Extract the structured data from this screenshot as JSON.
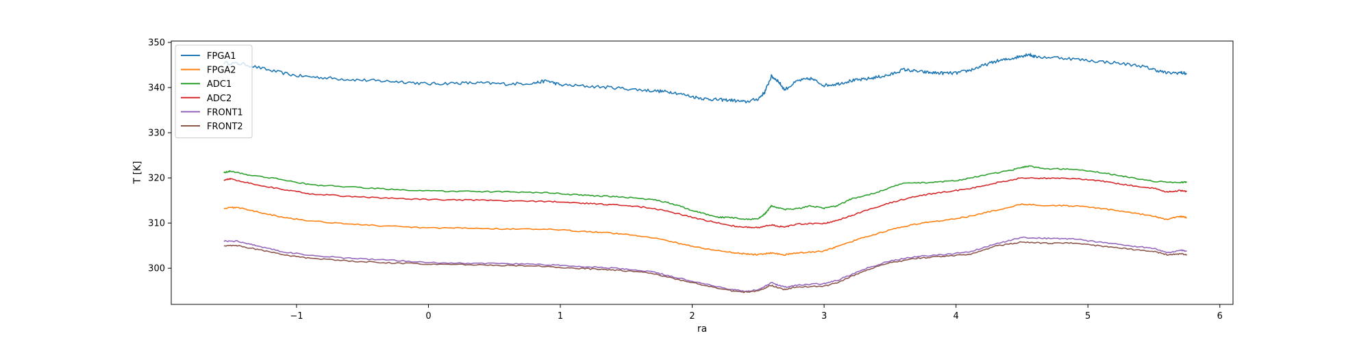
{
  "chart_data": {
    "type": "line",
    "xlabel": "ra",
    "ylabel": "T [K]",
    "xlim": [
      -1.95,
      6.1
    ],
    "ylim": [
      292,
      350.3
    ],
    "xticks": [
      -1,
      0,
      1,
      2,
      3,
      4,
      5,
      6
    ],
    "xtick_labels": [
      "−1",
      "0",
      "1",
      "2",
      "3",
      "4",
      "5",
      "6"
    ],
    "yticks": [
      300,
      310,
      320,
      330,
      340,
      350
    ],
    "ytick_labels": [
      "300",
      "310",
      "320",
      "330",
      "340",
      "350"
    ],
    "legend_position": "top-left",
    "grid": false,
    "series": [
      {
        "name": "FPGA1",
        "color": "#1f77b4",
        "points": [
          [
            -1.55,
            345.5
          ],
          [
            -1.4,
            345.2
          ],
          [
            -1.2,
            343.8
          ],
          [
            -1.0,
            342.6
          ],
          [
            -0.8,
            342.2
          ],
          [
            -0.6,
            341.8
          ],
          [
            -0.4,
            341.5
          ],
          [
            -0.2,
            341.3
          ],
          [
            0.0,
            340.8
          ],
          [
            0.2,
            341.0
          ],
          [
            0.4,
            341.0
          ],
          [
            0.6,
            340.8
          ],
          [
            0.8,
            341.0
          ],
          [
            0.9,
            341.5
          ],
          [
            1.0,
            340.6
          ],
          [
            1.2,
            340.3
          ],
          [
            1.4,
            340.0
          ],
          [
            1.6,
            339.5
          ],
          [
            1.75,
            339.2
          ],
          [
            1.85,
            339.0
          ],
          [
            2.0,
            338.0
          ],
          [
            2.1,
            337.5
          ],
          [
            2.2,
            337.3
          ],
          [
            2.3,
            337.2
          ],
          [
            2.4,
            336.8
          ],
          [
            2.5,
            337.5
          ],
          [
            2.55,
            339.0
          ],
          [
            2.6,
            342.5
          ],
          [
            2.65,
            341.5
          ],
          [
            2.7,
            339.5
          ],
          [
            2.8,
            341.5
          ],
          [
            2.9,
            342.0
          ],
          [
            3.0,
            340.5
          ],
          [
            3.1,
            340.8
          ],
          [
            3.2,
            341.5
          ],
          [
            3.3,
            341.8
          ],
          [
            3.4,
            342.3
          ],
          [
            3.5,
            342.8
          ],
          [
            3.6,
            344.0
          ],
          [
            3.7,
            343.6
          ],
          [
            3.8,
            343.3
          ],
          [
            3.9,
            343.2
          ],
          [
            4.0,
            343.2
          ],
          [
            4.1,
            343.8
          ],
          [
            4.2,
            344.8
          ],
          [
            4.3,
            345.8
          ],
          [
            4.4,
            346.3
          ],
          [
            4.5,
            347.0
          ],
          [
            4.55,
            347.4
          ],
          [
            4.6,
            346.8
          ],
          [
            4.8,
            346.6
          ],
          [
            5.0,
            346.0
          ],
          [
            5.2,
            345.5
          ],
          [
            5.4,
            344.8
          ],
          [
            5.5,
            344.0
          ],
          [
            5.6,
            343.2
          ],
          [
            5.7,
            343.3
          ],
          [
            5.75,
            343.1
          ]
        ]
      },
      {
        "name": "FPGA2",
        "color": "#ff7f0e",
        "points": [
          [
            -1.55,
            313.3
          ],
          [
            -1.45,
            313.5
          ],
          [
            -1.3,
            312.5
          ],
          [
            -1.1,
            311.3
          ],
          [
            -0.9,
            310.5
          ],
          [
            -0.6,
            309.8
          ],
          [
            -0.3,
            309.3
          ],
          [
            0.0,
            308.9
          ],
          [
            0.3,
            308.9
          ],
          [
            0.6,
            308.7
          ],
          [
            0.9,
            308.6
          ],
          [
            1.1,
            308.3
          ],
          [
            1.3,
            308.0
          ],
          [
            1.5,
            307.5
          ],
          [
            1.7,
            306.8
          ],
          [
            1.9,
            305.5
          ],
          [
            2.1,
            304.3
          ],
          [
            2.3,
            303.5
          ],
          [
            2.4,
            303.2
          ],
          [
            2.5,
            303.0
          ],
          [
            2.6,
            303.4
          ],
          [
            2.7,
            303.0
          ],
          [
            2.8,
            303.4
          ],
          [
            3.0,
            303.8
          ],
          [
            3.1,
            304.8
          ],
          [
            3.3,
            306.8
          ],
          [
            3.5,
            308.5
          ],
          [
            3.7,
            309.8
          ],
          [
            3.9,
            310.6
          ],
          [
            4.1,
            311.5
          ],
          [
            4.3,
            312.8
          ],
          [
            4.5,
            314.2
          ],
          [
            4.7,
            313.9
          ],
          [
            4.9,
            313.8
          ],
          [
            5.1,
            313.2
          ],
          [
            5.3,
            312.5
          ],
          [
            5.5,
            311.5
          ],
          [
            5.6,
            310.8
          ],
          [
            5.7,
            311.5
          ],
          [
            5.75,
            311.2
          ]
        ]
      },
      {
        "name": "ADC1",
        "color": "#2ca02c",
        "points": [
          [
            -1.55,
            321.2
          ],
          [
            -1.5,
            321.5
          ],
          [
            -1.35,
            320.6
          ],
          [
            -1.1,
            319.6
          ],
          [
            -0.9,
            318.5
          ],
          [
            -0.6,
            318.0
          ],
          [
            -0.3,
            317.5
          ],
          [
            0.0,
            317.1
          ],
          [
            0.3,
            317.0
          ],
          [
            0.6,
            316.9
          ],
          [
            0.9,
            316.7
          ],
          [
            1.1,
            316.3
          ],
          [
            1.3,
            316.0
          ],
          [
            1.5,
            315.7
          ],
          [
            1.7,
            315.2
          ],
          [
            1.85,
            314.3
          ],
          [
            2.0,
            312.8
          ],
          [
            2.1,
            312.0
          ],
          [
            2.2,
            311.3
          ],
          [
            2.3,
            311.2
          ],
          [
            2.4,
            310.8
          ],
          [
            2.5,
            311.0
          ],
          [
            2.55,
            312.0
          ],
          [
            2.6,
            313.8
          ],
          [
            2.7,
            313.0
          ],
          [
            2.8,
            313.2
          ],
          [
            2.9,
            313.8
          ],
          [
            3.0,
            313.3
          ],
          [
            3.1,
            313.8
          ],
          [
            3.2,
            315.3
          ],
          [
            3.4,
            316.8
          ],
          [
            3.6,
            318.8
          ],
          [
            3.8,
            319.0
          ],
          [
            4.0,
            319.4
          ],
          [
            4.2,
            320.5
          ],
          [
            4.4,
            321.6
          ],
          [
            4.5,
            322.3
          ],
          [
            4.55,
            322.6
          ],
          [
            4.7,
            322.0
          ],
          [
            4.9,
            322.0
          ],
          [
            5.1,
            321.2
          ],
          [
            5.3,
            320.2
          ],
          [
            5.5,
            319.2
          ],
          [
            5.7,
            319.0
          ],
          [
            5.75,
            319.1
          ]
        ]
      },
      {
        "name": "ADC2",
        "color": "#d62728",
        "points": [
          [
            -1.55,
            319.5
          ],
          [
            -1.5,
            319.8
          ],
          [
            -1.35,
            318.8
          ],
          [
            -1.1,
            317.4
          ],
          [
            -0.9,
            316.5
          ],
          [
            -0.6,
            315.9
          ],
          [
            -0.3,
            315.5
          ],
          [
            0.0,
            315.2
          ],
          [
            0.3,
            315.1
          ],
          [
            0.6,
            314.9
          ],
          [
            0.9,
            314.8
          ],
          [
            1.1,
            314.5
          ],
          [
            1.3,
            314.2
          ],
          [
            1.5,
            313.9
          ],
          [
            1.7,
            313.3
          ],
          [
            1.9,
            312.0
          ],
          [
            2.1,
            310.6
          ],
          [
            2.3,
            309.4
          ],
          [
            2.4,
            309.1
          ],
          [
            2.5,
            309.0
          ],
          [
            2.6,
            309.6
          ],
          [
            2.7,
            309.1
          ],
          [
            2.8,
            309.8
          ],
          [
            3.0,
            309.9
          ],
          [
            3.1,
            310.6
          ],
          [
            3.3,
            312.6
          ],
          [
            3.5,
            314.5
          ],
          [
            3.7,
            316.0
          ],
          [
            3.9,
            316.8
          ],
          [
            4.1,
            317.6
          ],
          [
            4.3,
            318.9
          ],
          [
            4.5,
            320.0
          ],
          [
            4.7,
            319.9
          ],
          [
            4.9,
            319.9
          ],
          [
            5.1,
            319.3
          ],
          [
            5.3,
            318.4
          ],
          [
            5.5,
            317.7
          ],
          [
            5.6,
            316.9
          ],
          [
            5.7,
            317.2
          ],
          [
            5.75,
            317.0
          ]
        ]
      },
      {
        "name": "FRONT1",
        "color": "#9467bd",
        "points": [
          [
            -1.55,
            306.0
          ],
          [
            -1.45,
            306.0
          ],
          [
            -1.3,
            305.0
          ],
          [
            -1.1,
            303.6
          ],
          [
            -0.9,
            302.9
          ],
          [
            -0.6,
            302.2
          ],
          [
            -0.3,
            301.8
          ],
          [
            0.0,
            301.3
          ],
          [
            0.3,
            301.1
          ],
          [
            0.6,
            301.0
          ],
          [
            0.9,
            300.8
          ],
          [
            1.1,
            300.4
          ],
          [
            1.3,
            300.2
          ],
          [
            1.5,
            299.8
          ],
          [
            1.7,
            299.2
          ],
          [
            1.9,
            297.8
          ],
          [
            2.1,
            296.5
          ],
          [
            2.3,
            295.3
          ],
          [
            2.4,
            294.9
          ],
          [
            2.5,
            295.2
          ],
          [
            2.6,
            296.8
          ],
          [
            2.7,
            295.8
          ],
          [
            2.8,
            296.3
          ],
          [
            3.0,
            296.6
          ],
          [
            3.1,
            297.3
          ],
          [
            3.3,
            299.8
          ],
          [
            3.5,
            301.6
          ],
          [
            3.7,
            302.6
          ],
          [
            3.9,
            303.0
          ],
          [
            4.1,
            303.6
          ],
          [
            4.3,
            305.4
          ],
          [
            4.5,
            306.8
          ],
          [
            4.7,
            306.6
          ],
          [
            4.9,
            306.5
          ],
          [
            5.1,
            305.7
          ],
          [
            5.3,
            305.0
          ],
          [
            5.5,
            304.4
          ],
          [
            5.6,
            303.4
          ],
          [
            5.7,
            304.0
          ],
          [
            5.75,
            303.8
          ]
        ]
      },
      {
        "name": "FRONT2",
        "color": "#8c564b",
        "points": [
          [
            -1.55,
            305.0
          ],
          [
            -1.45,
            305.0
          ],
          [
            -1.3,
            304.2
          ],
          [
            -1.1,
            303.0
          ],
          [
            -0.9,
            302.2
          ],
          [
            -0.6,
            301.6
          ],
          [
            -0.3,
            301.2
          ],
          [
            0.0,
            300.9
          ],
          [
            0.3,
            300.8
          ],
          [
            0.6,
            300.6
          ],
          [
            0.9,
            300.4
          ],
          [
            1.1,
            300.0
          ],
          [
            1.3,
            299.8
          ],
          [
            1.5,
            299.4
          ],
          [
            1.7,
            298.9
          ],
          [
            1.9,
            297.4
          ],
          [
            2.1,
            296.2
          ],
          [
            2.3,
            295.0
          ],
          [
            2.4,
            294.7
          ],
          [
            2.5,
            295.0
          ],
          [
            2.6,
            296.2
          ],
          [
            2.7,
            295.3
          ],
          [
            2.8,
            295.9
          ],
          [
            3.0,
            296.0
          ],
          [
            3.1,
            296.8
          ],
          [
            3.3,
            299.4
          ],
          [
            3.5,
            301.2
          ],
          [
            3.7,
            302.2
          ],
          [
            3.9,
            302.6
          ],
          [
            4.1,
            303.1
          ],
          [
            4.3,
            304.9
          ],
          [
            4.5,
            305.8
          ],
          [
            4.7,
            305.5
          ],
          [
            4.9,
            305.6
          ],
          [
            5.1,
            304.9
          ],
          [
            5.3,
            304.3
          ],
          [
            5.5,
            303.7
          ],
          [
            5.6,
            303.0
          ],
          [
            5.7,
            303.2
          ],
          [
            5.75,
            303.0
          ]
        ]
      }
    ]
  }
}
